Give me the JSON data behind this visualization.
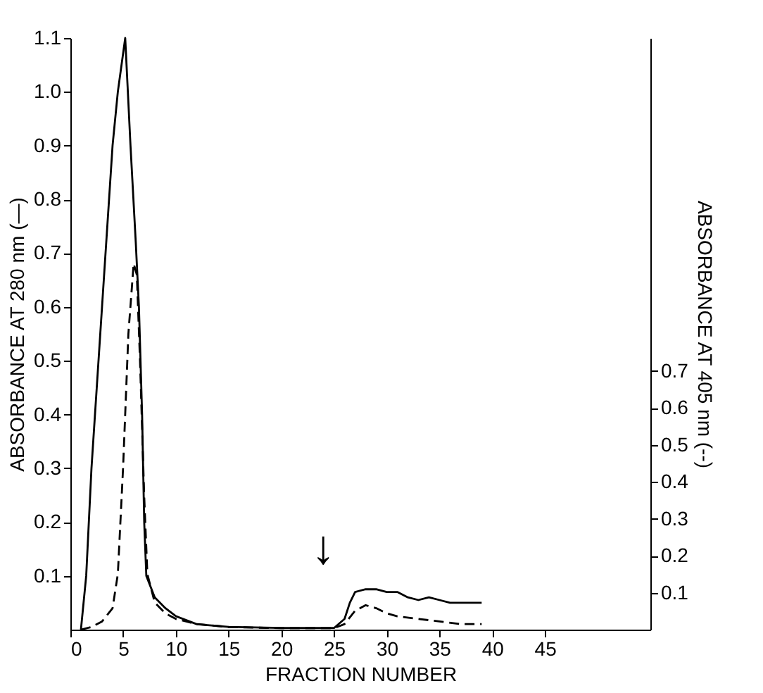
{
  "chart_data": {
    "type": "line",
    "xlabel": "FRACTION NUMBER",
    "ylabel": "ABSORBANCE AT 280 nm (—)",
    "y2label": "ABSORBANCE AT 405 nm (--)",
    "series": [
      {
        "color": "#000000",
        "line_style": "solid",
        "x": [
          1,
          1.5,
          2,
          3,
          4,
          4.5,
          5.2,
          5.7,
          6.2,
          6.5,
          6.8,
          7,
          7.2,
          8,
          9,
          10,
          12,
          15,
          20,
          25,
          26,
          26.5,
          27,
          28,
          29,
          30,
          31,
          32,
          33,
          34,
          35,
          36,
          37,
          38,
          39
        ],
        "values": [
          0,
          0.1,
          0.3,
          0.6,
          0.9,
          1.0,
          1.1,
          0.9,
          0.72,
          0.6,
          0.4,
          0.2,
          0.1,
          0.06,
          0.04,
          0.025,
          0.01,
          0.005,
          0.003,
          0.003,
          0.02,
          0.05,
          0.07,
          0.075,
          0.075,
          0.07,
          0.07,
          0.06,
          0.055,
          0.06,
          0.055,
          0.05,
          0.05,
          0.05,
          0.05
        ]
      },
      {
        "color": "#000000",
        "line_style": "dashed",
        "axis": "y2",
        "x": [
          1,
          2,
          3,
          4,
          4.5,
          5,
          5.5,
          6,
          6.3,
          6.6,
          7,
          7.3,
          8,
          9,
          10,
          12,
          15,
          20,
          25,
          26,
          27,
          28,
          29,
          30,
          31,
          33,
          35,
          37,
          39
        ],
        "values": [
          0,
          0.007,
          0.022,
          0.058,
          0.15,
          0.44,
          0.8,
          0.99,
          0.96,
          0.73,
          0.36,
          0.15,
          0.073,
          0.044,
          0.029,
          0.015,
          0.007,
          0.004,
          0.004,
          0.015,
          0.051,
          0.066,
          0.058,
          0.044,
          0.036,
          0.029,
          0.022,
          0.015,
          0.015
        ]
      }
    ],
    "annotations": [
      "↓"
    ],
    "xlim": [
      0,
      55
    ],
    "xticks": [
      0,
      5,
      10,
      15,
      20,
      25,
      30,
      35,
      40,
      45
    ],
    "ylim": [
      0,
      1.1
    ],
    "yticks": [
      0.1,
      0.2,
      0.3,
      0.4,
      0.5,
      0.6,
      0.7,
      0.8,
      0.9,
      {
        "value": 1.0,
        "label": "1.0"
      },
      1.1
    ],
    "y2lim": [
      0,
      1.6
    ],
    "y2ticks": [
      0.1,
      0.2,
      0.3,
      0.4,
      0.5,
      0.6,
      0.7
    ],
    "grid": false
  }
}
